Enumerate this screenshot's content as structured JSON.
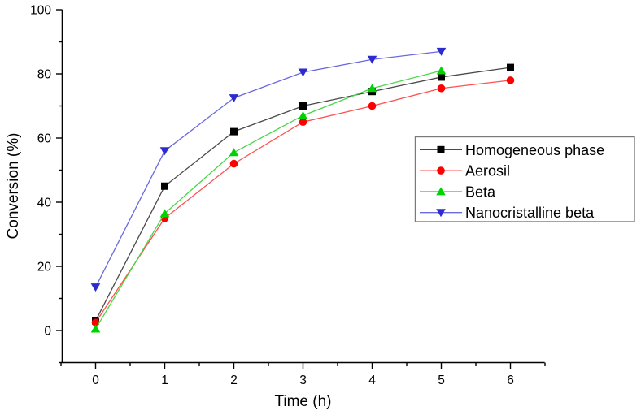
{
  "chart_data": {
    "type": "line",
    "title": "",
    "xlabel": "Time (h)",
    "ylabel": "Conversion (%)",
    "xlim": [
      -0.5,
      6.5
    ],
    "ylim": [
      -10,
      100
    ],
    "x_major_ticks": [
      0,
      1,
      2,
      3,
      4,
      5,
      6
    ],
    "y_major_ticks": [
      0,
      20,
      40,
      60,
      80,
      100
    ],
    "x_minor_step": 0.5,
    "y_minor_step": 10,
    "grid": false,
    "background_color": "#ffffff",
    "axis_color": "#000000",
    "legend": {
      "position": "center-right",
      "border_color": "#7a7a7a",
      "fill_color": "#ffffff"
    },
    "series": [
      {
        "name": "Homogeneous phase",
        "marker": "square",
        "marker_color": "#000000",
        "line_color": "#4a4a4a",
        "x": [
          0,
          1,
          2,
          3,
          4,
          5,
          6
        ],
        "values": [
          3,
          45,
          62,
          70,
          74.5,
          79,
          82
        ]
      },
      {
        "name": "Aerosil",
        "marker": "circle",
        "marker_color": "#ff0000",
        "line_color": "#ff5050",
        "x": [
          0,
          1,
          2,
          3,
          4,
          5,
          6
        ],
        "values": [
          2.5,
          35,
          52,
          65,
          70,
          75.5,
          78
        ]
      },
      {
        "name": "Beta",
        "marker": "triangle-up",
        "marker_color": "#00d400",
        "line_color": "#44d944",
        "x": [
          0,
          1,
          2,
          3,
          4,
          5
        ],
        "values": [
          0.5,
          36.5,
          55.5,
          67,
          75.5,
          81
        ]
      },
      {
        "name": "Nanocristalline beta",
        "marker": "triangle-down",
        "marker_color": "#2b2bd0",
        "line_color": "#6a6ade",
        "x": [
          0,
          1,
          2,
          3,
          4,
          5
        ],
        "values": [
          13.5,
          56,
          72.5,
          80.5,
          84.5,
          87
        ]
      }
    ]
  }
}
